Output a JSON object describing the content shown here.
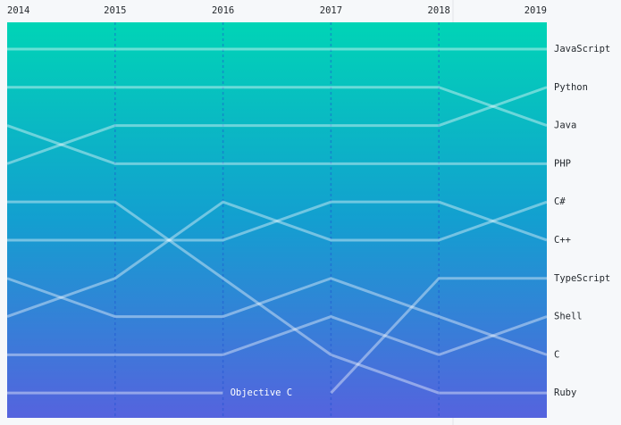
{
  "chart_data": {
    "type": "line",
    "x": [
      2014,
      2015,
      2016,
      2017,
      2018,
      2019
    ],
    "xlim": [
      2014,
      2019
    ],
    "xticks": [
      2014,
      2015,
      2016,
      2017,
      2018,
      2019
    ],
    "ylim": [
      0.3,
      10.65
    ],
    "y_inverted": true,
    "series": [
      {
        "name": "JavaScript",
        "color": "#ffffff",
        "values": [
          1,
          1,
          1,
          1,
          1,
          1
        ]
      },
      {
        "name": "Python",
        "color": "#ffffff",
        "values": [
          4,
          3,
          3,
          3,
          3,
          2
        ]
      },
      {
        "name": "Java",
        "color": "#ffffff",
        "values": [
          2,
          2,
          2,
          2,
          2,
          3
        ]
      },
      {
        "name": "PHP",
        "color": "#ffffff",
        "values": [
          3,
          4,
          4,
          4,
          4,
          4
        ]
      },
      {
        "name": "C#",
        "color": "#ffffff",
        "values": [
          8,
          7,
          5,
          6,
          6,
          5
        ]
      },
      {
        "name": "C++",
        "color": "#ffffff",
        "values": [
          6,
          6,
          6,
          5,
          5,
          6
        ]
      },
      {
        "name": "TypeScript",
        "color": "#ffffff",
        "values": [
          null,
          null,
          null,
          10,
          7,
          7
        ]
      },
      {
        "name": "Shell",
        "color": "#ffffff",
        "values": [
          9,
          9,
          9,
          8,
          9,
          8
        ]
      },
      {
        "name": "C",
        "color": "#ffffff",
        "values": [
          7,
          8,
          8,
          7,
          8,
          9
        ]
      },
      {
        "name": "Ruby",
        "color": "#ffffff",
        "values": [
          5,
          5,
          7,
          9,
          10,
          10
        ]
      },
      {
        "name": "Objective C",
        "color": "#ffffff",
        "values": [
          10,
          10,
          10,
          null,
          null,
          null
        ]
      }
    ]
  }
}
